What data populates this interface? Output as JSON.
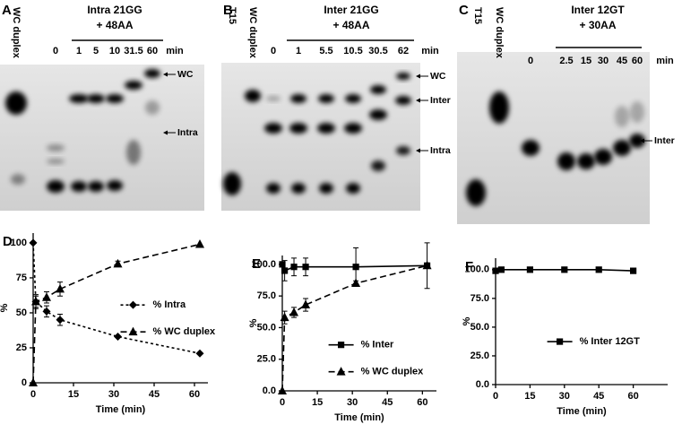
{
  "gels": [
    {
      "panel": "A",
      "top_lanes": [
        "WC duplex"
      ],
      "title": [
        "Intra 21GG",
        "+ 48AA"
      ],
      "lanes": [
        "0",
        "1",
        "5",
        "10",
        "31.5",
        "60"
      ],
      "unit": "min",
      "markers": [
        "WC",
        "Intra"
      ]
    },
    {
      "panel": "B",
      "top_lanes": [
        "T15",
        "WC duplex"
      ],
      "title": [
        "Inter 21GG",
        "+ 48AA"
      ],
      "lanes": [
        "0",
        "1",
        "5.5",
        "10.5",
        "30.5",
        "62"
      ],
      "unit": "min",
      "markers": [
        "WC",
        "Inter",
        "Intra"
      ]
    },
    {
      "panel": "C",
      "top_lanes": [
        "T15",
        "WC duplex"
      ],
      "title": [
        "Inter 12GT",
        "+ 30AA"
      ],
      "lanes": [
        "0",
        "2.5",
        "15",
        "30",
        "45",
        "60"
      ],
      "unit": "min",
      "markers": [
        "Inter"
      ]
    }
  ],
  "chart_data": [
    {
      "type": "line",
      "panel": "D",
      "xlabel": "Time (min)",
      "ylabel": "%",
      "x": [
        0,
        1,
        5,
        10,
        31.5,
        62
      ],
      "xlim": [
        0,
        65
      ],
      "xticks": [
        0,
        15,
        30,
        45,
        60
      ],
      "ylim": [
        0,
        107
      ],
      "yticks": [
        0,
        25,
        50,
        75,
        100
      ],
      "legend": "center",
      "series": [
        {
          "name": "% Intra",
          "color": "#000000",
          "marker": "diamond",
          "dash": "dotted",
          "values": [
            100,
            58,
            51,
            45,
            33,
            21
          ],
          "errors": [
            null,
            5,
            4,
            4,
            null,
            null
          ]
        },
        {
          "name": "% WC duplex",
          "color": "#000000",
          "marker": "triangle",
          "dash": "dashed",
          "values": [
            0,
            58,
            61,
            67,
            85,
            99
          ],
          "errors": [
            null,
            4,
            4,
            5,
            2,
            null
          ]
        }
      ]
    },
    {
      "type": "line",
      "panel": "E",
      "xlabel": "Time (min)",
      "ylabel": "%",
      "x": [
        0,
        1,
        5,
        10,
        31.5,
        62
      ],
      "xlim": [
        0,
        66
      ],
      "xticks": [
        0,
        15,
        30,
        45,
        60
      ],
      "ylim": [
        0,
        107
      ],
      "yticks": [
        {
          "value": 0,
          "label": "0.0"
        },
        {
          "value": 25,
          "label": "25.0"
        },
        {
          "value": 50,
          "label": "50.0"
        },
        {
          "value": 75,
          "label": "75.0"
        },
        {
          "value": 100,
          "label": "100.0"
        }
      ],
      "legend": "lower center",
      "series": [
        {
          "name": "% Inter",
          "color": "#000000",
          "marker": "square",
          "dash": "solid",
          "values": [
            100,
            95,
            98,
            98,
            98,
            99
          ],
          "errors": [
            null,
            8,
            7,
            7,
            15,
            18
          ]
        },
        {
          "name": "% WC duplex",
          "color": "#000000",
          "marker": "triangle",
          "dash": "dashed",
          "values": [
            0,
            58,
            62,
            68,
            85,
            99
          ],
          "errors": [
            null,
            5,
            4,
            5,
            2,
            null
          ]
        }
      ]
    },
    {
      "type": "line",
      "panel": "F",
      "xlabel": "Time (min)",
      "ylabel": "%",
      "x": [
        0,
        2.5,
        15,
        30,
        45,
        60
      ],
      "xlim": [
        0,
        75
      ],
      "xticks": [
        0,
        15,
        30,
        45,
        60
      ],
      "ylim": [
        0,
        110
      ],
      "yticks": [
        {
          "value": 0,
          "label": "0.0"
        },
        {
          "value": 25,
          "label": "25.0"
        },
        {
          "value": 50,
          "label": "50.0"
        },
        {
          "value": 75,
          "label": "75.0"
        },
        {
          "value": 100,
          "label": "100.0"
        }
      ],
      "legend": "lower center",
      "series": [
        {
          "name": "% Inter 12GT",
          "color": "#000000",
          "marker": "square",
          "dash": "solid",
          "values": [
            99,
            100,
            100,
            100,
            100,
            99
          ],
          "errors": [
            null,
            null,
            null,
            null,
            null,
            null
          ]
        }
      ]
    }
  ]
}
